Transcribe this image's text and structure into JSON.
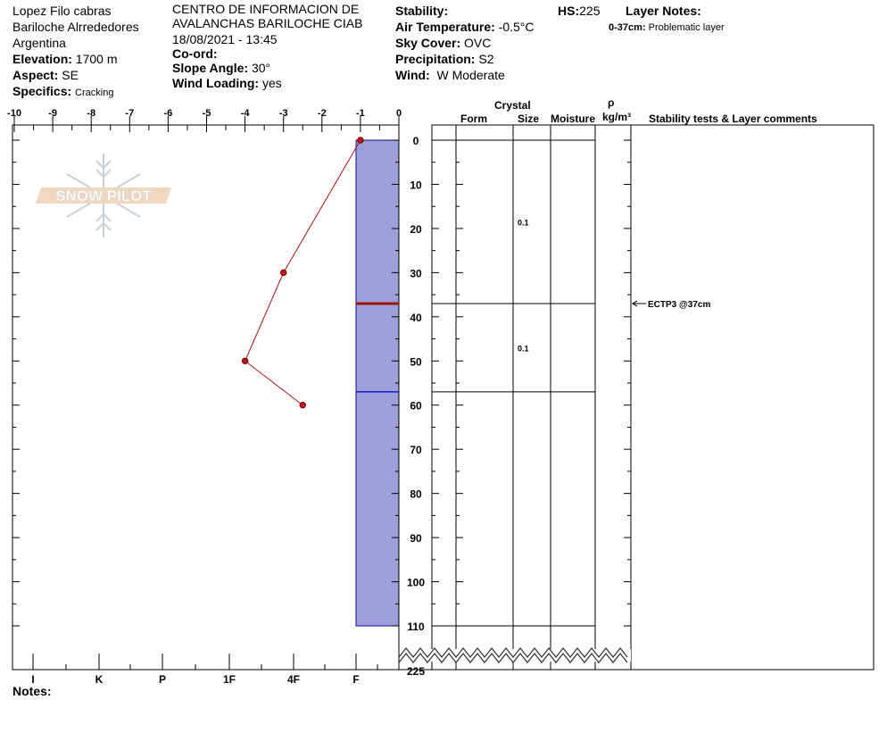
{
  "header": {
    "observer": "Lopez Filo cabras",
    "location": "Bariloche Alrrededores",
    "country": "Argentina",
    "elevation_label": "Elevation:",
    "elevation": "1700 m",
    "aspect_label": "Aspect:",
    "aspect": "SE",
    "specifics_label": "Specifics:",
    "specifics": "Cracking",
    "organization": "CENTRO DE INFORMACION DE AVALANCHAS BARILOCHE CIAB",
    "datetime": "18/08/2021 - 13:45",
    "coord_label": "Co-ord:",
    "slope_label": "Slope Angle:",
    "slope": "30°",
    "wind_loading_label": "Wind Loading:",
    "wind_loading": "yes",
    "stability_label": "Stability:",
    "hs_label": "HS:",
    "hs": "225",
    "air_temp_label": "Air Temperature:",
    "air_temp": "-0.5°C",
    "sky_label": "Sky Cover:",
    "sky": "OVC",
    "precip_label": "Precipitation:",
    "precip": "S2",
    "wind_label": "Wind:",
    "wind": "W Moderate",
    "layer_notes_label": "Layer Notes:",
    "layer_note_range": "0-37cm:",
    "layer_note_text": "Problematic layer"
  },
  "logo": {
    "text": "SNOW PILOT"
  },
  "columns": {
    "crystal": "Crystal",
    "form": "Form",
    "size": "Size",
    "moisture": "Moisture",
    "rho": "ρ",
    "density_unit": "kg/m³",
    "stability": "Stability tests & Layer comments"
  },
  "notes_label": "Notes:",
  "chart_data": {
    "type": "line",
    "temperature_axis": {
      "ticks": [
        "-10",
        "-9",
        "-8",
        "-7",
        "-6",
        "-5",
        "-4",
        "-3",
        "-2",
        "-1",
        "0"
      ],
      "range": [
        -10,
        0
      ]
    },
    "depth_axis": {
      "ticks": [
        "0",
        "10",
        "20",
        "30",
        "40",
        "50",
        "60",
        "70",
        "80",
        "90",
        "100",
        "110"
      ],
      "range": [
        0,
        110
      ],
      "break_label": "225"
    },
    "hardness_axis": {
      "ticks": [
        "I",
        "K",
        "P",
        "1F",
        "4F",
        "F"
      ]
    },
    "temperature_profile": [
      {
        "depth": 0,
        "temp": -1
      },
      {
        "depth": 30,
        "temp": -3
      },
      {
        "depth": 50,
        "temp": -4
      },
      {
        "depth": 60,
        "temp": -2.5
      }
    ],
    "layers": [
      {
        "top": 0,
        "bottom": 37,
        "hardness": "F",
        "size": "0.1"
      },
      {
        "top": 37,
        "bottom": 57,
        "hardness": "F",
        "size": "0.1"
      },
      {
        "top": 57,
        "bottom": 110,
        "hardness": "F",
        "size": ""
      }
    ],
    "problem_layer_depth": 37,
    "stability_tests": [
      {
        "depth": 37,
        "label": "ECTP3 @37cm"
      }
    ],
    "colors": {
      "hardness_fill": "#9e9ed8",
      "temperature": "#b01010",
      "problem_line": "#a01010",
      "layer_line": "#0000cc"
    }
  }
}
